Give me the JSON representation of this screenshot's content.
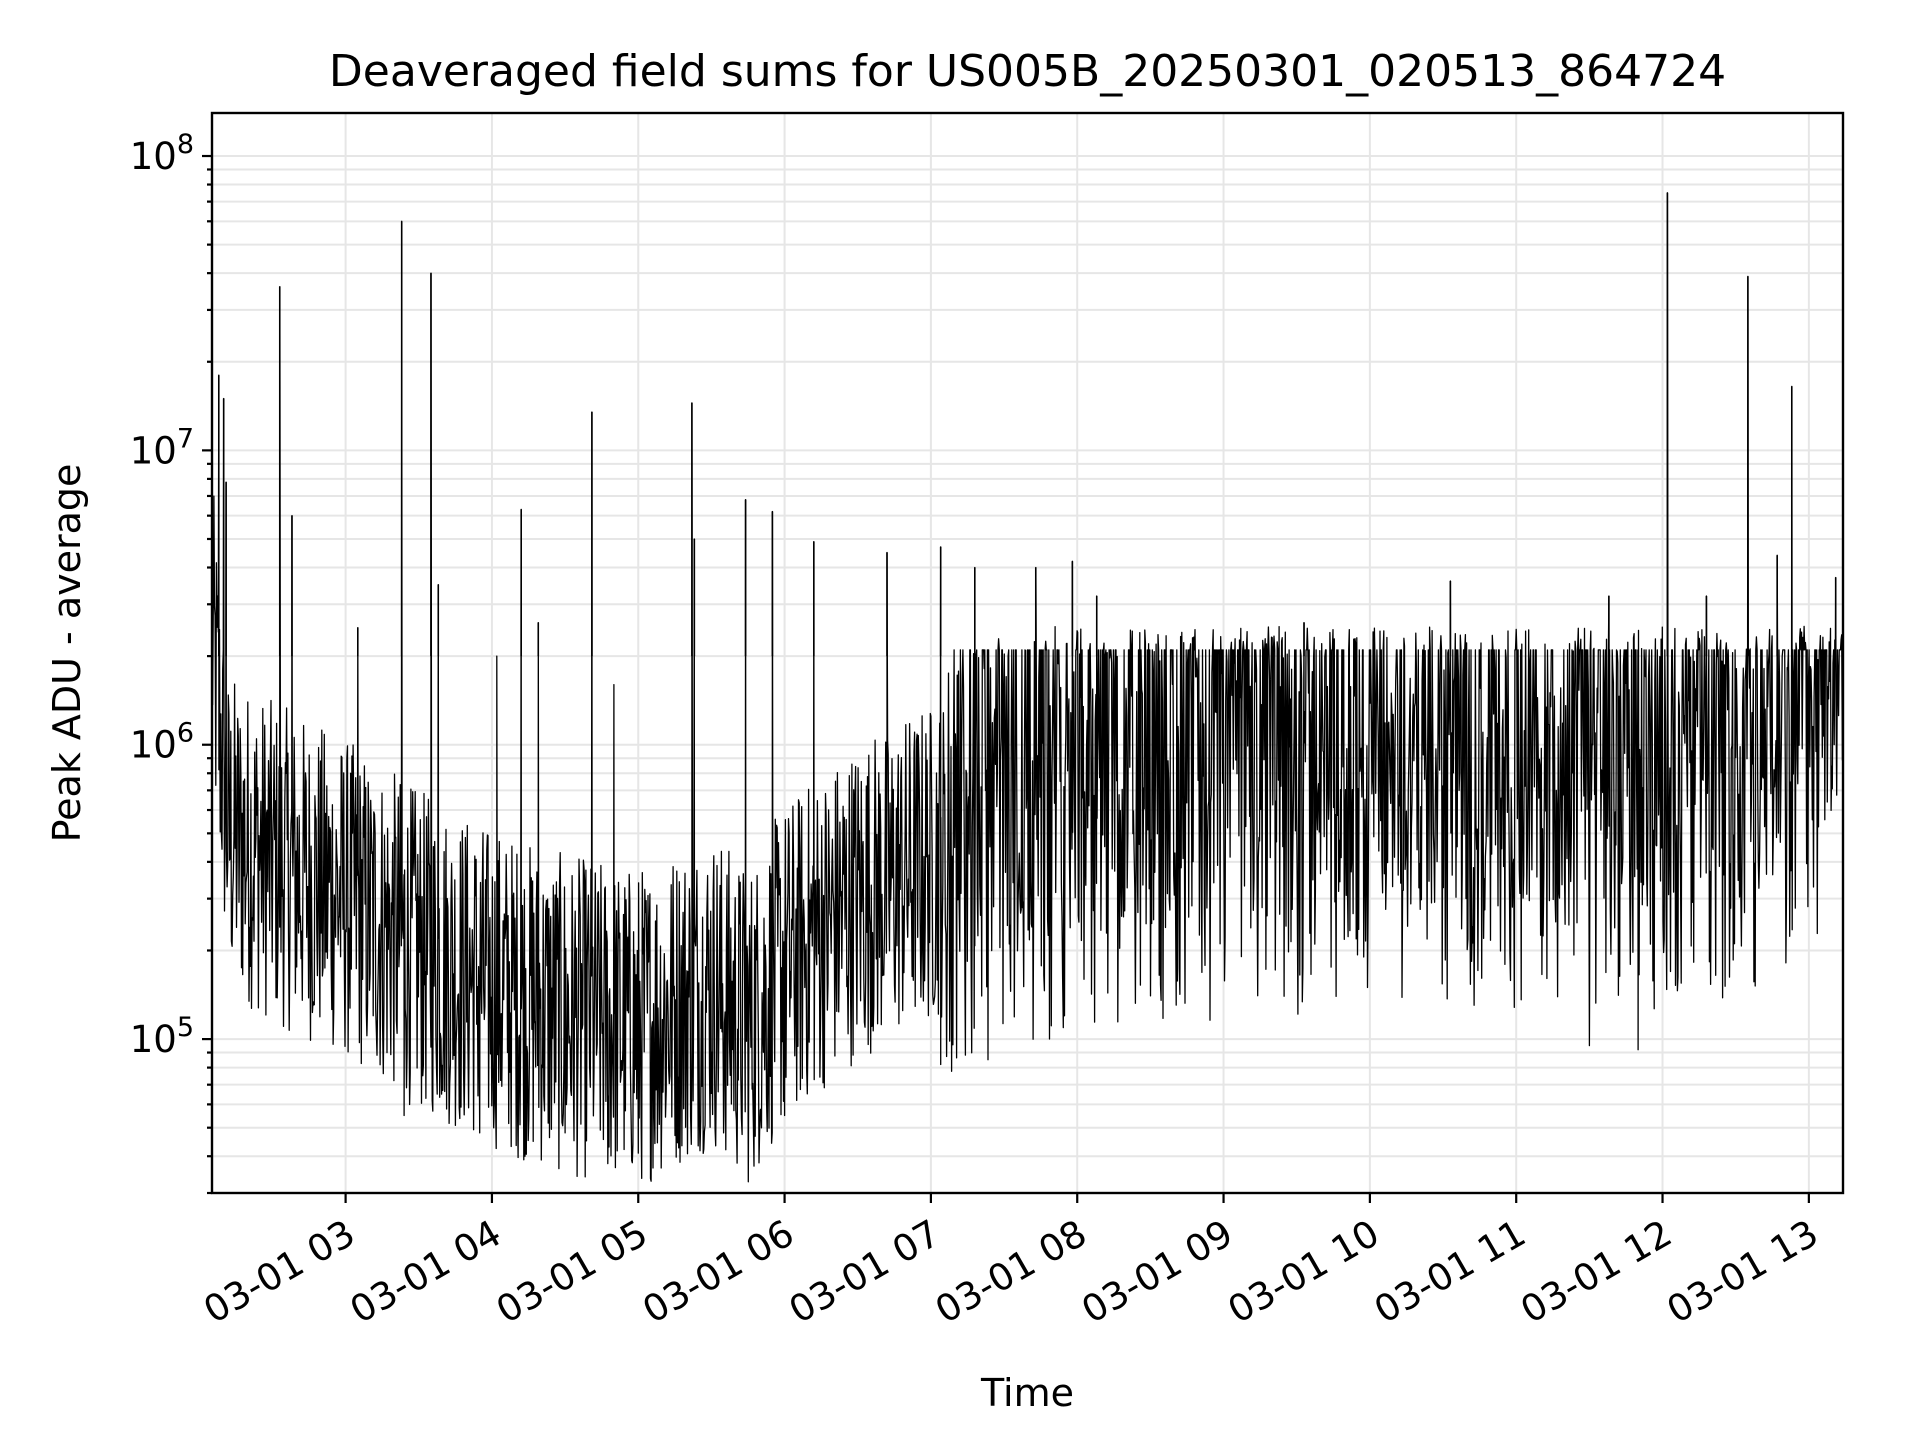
{
  "chart_data": {
    "type": "line",
    "title": "Deaveraged field sums for US005B_20250301_020513_864724",
    "xlabel": "Time",
    "ylabel": "Peak ADU - average",
    "x_scale": "time",
    "y_scale": "log",
    "xlim": [
      "2025-03-01T02:05:13",
      "2025-03-01T13:14:00"
    ],
    "ylim": [
      30000,
      140000000
    ],
    "grid": true,
    "x_tick_labels": [
      "03-01 03",
      "03-01 04",
      "03-01 05",
      "03-01 06",
      "03-01 07",
      "03-01 08",
      "03-01 09",
      "03-01 10",
      "03-01 11",
      "03-01 12",
      "03-01 13"
    ],
    "x_tick_values": [
      "2025-03-01T03:00",
      "2025-03-01T04:00",
      "2025-03-01T05:00",
      "2025-03-01T06:00",
      "2025-03-01T07:00",
      "2025-03-01T08:00",
      "2025-03-01T09:00",
      "2025-03-01T10:00",
      "2025-03-01T11:00",
      "2025-03-01T12:00",
      "2025-03-01T13:00"
    ],
    "y_tick_labels": [
      {
        "value": 100000,
        "base": "10",
        "exp": "5"
      },
      {
        "value": 1000000,
        "base": "10",
        "exp": "6"
      },
      {
        "value": 10000000,
        "base": "10",
        "exp": "7"
      },
      {
        "value": 100000000,
        "base": "10",
        "exp": "8"
      }
    ],
    "series": [
      {
        "color": "#000000",
        "baseline": [
          [
            "2025-03-01T02:05",
            2500000
          ],
          [
            "2025-03-01T02:12",
            500000
          ],
          [
            "2025-03-01T02:30",
            400000
          ],
          [
            "2025-03-01T03:00",
            300000
          ],
          [
            "2025-03-01T03:30",
            200000
          ],
          [
            "2025-03-01T04:00",
            150000
          ],
          [
            "2025-03-01T04:30",
            120000
          ],
          [
            "2025-03-01T05:00",
            110000
          ],
          [
            "2025-03-01T05:30",
            150000
          ],
          [
            "2025-03-01T05:45",
            110000
          ],
          [
            "2025-03-01T06:00",
            180000
          ],
          [
            "2025-03-01T06:30",
            300000
          ],
          [
            "2025-03-01T07:00",
            400000
          ],
          [
            "2025-03-01T07:30",
            500000
          ],
          [
            "2025-03-01T08:00",
            600000
          ],
          [
            "2025-03-01T09:00",
            650000
          ],
          [
            "2025-03-01T10:00",
            700000
          ],
          [
            "2025-03-01T11:00",
            700000
          ],
          [
            "2025-03-01T12:00",
            700000
          ],
          [
            "2025-03-01T12:45",
            800000
          ],
          [
            "2025-03-01T13:00",
            1200000
          ],
          [
            "2025-03-01T13:14",
            1500000
          ]
        ],
        "spikes": [
          [
            "2025-03-01T02:08",
            18000000
          ],
          [
            "2025-03-01T02:10",
            15000000
          ],
          [
            "2025-03-01T02:11",
            7800000
          ],
          [
            "2025-03-01T02:33",
            36000000
          ],
          [
            "2025-03-01T02:38",
            6000000
          ],
          [
            "2025-03-01T03:05",
            2500000
          ],
          [
            "2025-03-01T03:23",
            60000000
          ],
          [
            "2025-03-01T03:35",
            40000000
          ],
          [
            "2025-03-01T03:38",
            3500000
          ],
          [
            "2025-03-01T04:02",
            2000000
          ],
          [
            "2025-03-01T04:12",
            6300000
          ],
          [
            "2025-03-01T04:19",
            2600000
          ],
          [
            "2025-03-01T04:41",
            13500000
          ],
          [
            "2025-03-01T04:50",
            1600000
          ],
          [
            "2025-03-01T05:22",
            14500000
          ],
          [
            "2025-03-01T05:23",
            5000000
          ],
          [
            "2025-03-01T05:44",
            6800000
          ],
          [
            "2025-03-01T05:55",
            6200000
          ],
          [
            "2025-03-01T06:12",
            4900000
          ],
          [
            "2025-03-01T06:42",
            4500000
          ],
          [
            "2025-03-01T07:04",
            4700000
          ],
          [
            "2025-03-01T07:18",
            4000000
          ],
          [
            "2025-03-01T07:43",
            4000000
          ],
          [
            "2025-03-01T07:58",
            4200000
          ],
          [
            "2025-03-01T08:08",
            3200000
          ],
          [
            "2025-03-01T09:33",
            2600000
          ],
          [
            "2025-03-01T10:33",
            3600000
          ],
          [
            "2025-03-01T11:38",
            3200000
          ],
          [
            "2025-03-01T12:02",
            75000000
          ],
          [
            "2025-03-01T12:18",
            3200000
          ],
          [
            "2025-03-01T12:35",
            39000000
          ],
          [
            "2025-03-01T12:47",
            4400000
          ],
          [
            "2025-03-01T12:53",
            16500000
          ],
          [
            "2025-03-01T13:11",
            3700000
          ]
        ],
        "dips": [
          [
            "2025-03-01T03:24",
            55000
          ],
          [
            "2025-03-01T03:55",
            48000
          ],
          [
            "2025-03-01T04:30",
            48000
          ],
          [
            "2025-03-01T04:48",
            43000
          ],
          [
            "2025-03-01T05:00",
            41000
          ],
          [
            "2025-03-01T05:35",
            48000
          ],
          [
            "2025-03-01T06:00",
            55000
          ],
          [
            "2025-03-01T07:04",
            82000
          ],
          [
            "2025-03-01T11:30",
            95000
          ],
          [
            "2025-03-01T11:50",
            92000
          ]
        ]
      }
    ]
  }
}
